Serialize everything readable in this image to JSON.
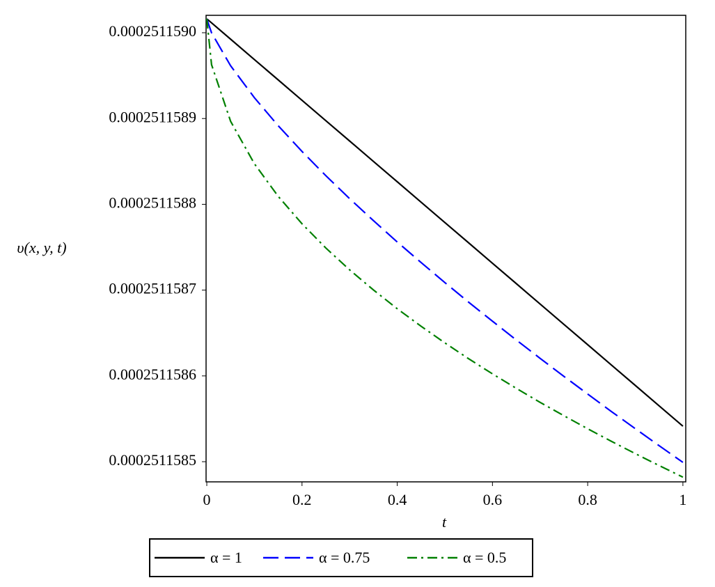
{
  "chart_data": {
    "type": "line",
    "xlabel": "t",
    "ylabel": "υ(x, y, t)",
    "x": [
      0,
      0.01,
      0.05,
      0.1,
      0.15,
      0.2,
      0.25,
      0.3,
      0.35,
      0.4,
      0.45,
      0.5,
      0.55,
      0.6,
      0.65,
      0.7,
      0.75,
      0.8,
      0.85,
      0.9,
      0.95,
      1
    ],
    "series": [
      {
        "name": "α = 1",
        "color": "#000000",
        "dash": "solid",
        "values": [
          0.0002511590162,
          0.0002511590115,
          0.0002511589925,
          0.0002511589687,
          0.000251158945,
          0.0002511589212,
          0.0002511588975,
          0.0002511588738,
          0.00025115885,
          0.0002511588263,
          0.0002511588025,
          0.0002511587788,
          0.0002511587551,
          0.0002511587313,
          0.0002511587076,
          0.0002511586838,
          0.0002511586601,
          0.0002511586364,
          0.0002511586126,
          0.0002511585889,
          0.0002511585651,
          0.0002511585414
        ]
      },
      {
        "name": "α = 0.75",
        "color": "#0000ff",
        "dash": "dash",
        "values": [
          0.0002511590162,
          0.0002511589999,
          0.0002511589615,
          0.0002511589243,
          0.0002511588916,
          0.0002511588616,
          0.0002511588334,
          0.0002511588066,
          0.000251158781,
          0.0002511587561,
          0.0002511587322,
          0.0002511587088,
          0.0002511586859,
          0.0002511586638,
          0.0002511586419,
          0.0002511586205,
          0.0002511585995,
          0.0002511585789,
          0.0002511585584,
          0.0002511585385,
          0.0002511585187,
          0.0002511584992
        ]
      },
      {
        "name": "α = 0.5",
        "color": "#008000",
        "dash": "dashdot",
        "values": [
          0.0002511590162,
          0.0002511589628,
          0.0002511588968,
          0.0002511588473,
          0.0002511588093,
          0.0002511587773,
          0.0002511587491,
          0.0002511587236,
          0.0002511587002,
          0.0002511586783,
          0.0002511586579,
          0.0002511586385,
          0.00025115862,
          0.0002511586024,
          0.0002511585855,
          0.0002511585692,
          0.0002511585536,
          0.0002511585384,
          0.0002511585237,
          0.0002511585094,
          0.0002511584955,
          0.000251158482
        ]
      }
    ],
    "xlim": [
      -0.0015,
      1.006
    ],
    "xticks": [
      0,
      0.2,
      0.4,
      0.6,
      0.8,
      1
    ],
    "ylim": [
      0.0002511584765,
      0.0002511590203
    ],
    "yticks": [
      0.0002511585,
      0.0002511586,
      0.0002511587,
      0.0002511588,
      0.0002511589,
      {
        "value": 0.000251159,
        "label": "0.0002511590"
      }
    ],
    "legend": "bottom"
  }
}
